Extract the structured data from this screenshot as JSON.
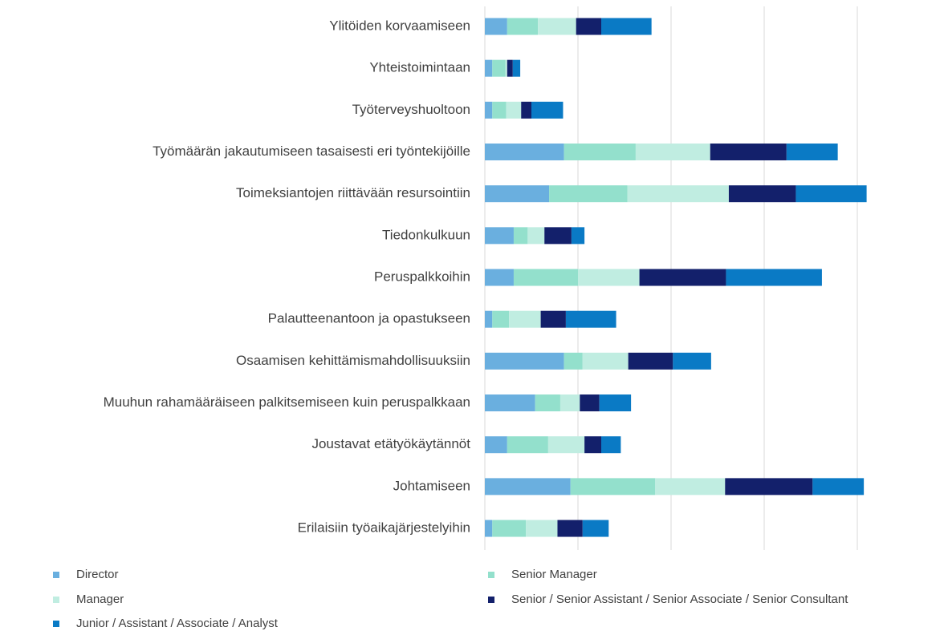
{
  "chart_data": {
    "type": "stacked-barh",
    "categories": [
      "Ylitöiden korvaamiseen",
      "Yhteistoimintaan",
      "Työterveyshuoltoon",
      "Työmäärän jakautumiseen tasaisesti eri työntekijöille",
      "Toimeksiantojen riittävään resursointiin",
      "Tiedonkulkuun",
      "Peruspalkkoihin",
      "Palautteenantoon ja opastukseen",
      "Osaamisen kehittämismahdollisuuksiin",
      "Muuhun rahamääräiseen palkitsemiseen kuin peruspalkkaan",
      "Joustavat etätyökäytännöt",
      "Johtamiseen",
      "Erilaisiin työaikajärjestelyihin"
    ],
    "series": [
      {
        "name": "Director",
        "color": "#6aafdf",
        "values": [
          2.4,
          0.8,
          0.8,
          8.5,
          6.9,
          3.1,
          3.1,
          0.8,
          8.5,
          5.4,
          2.4,
          9.2,
          0.8
        ]
      },
      {
        "name": "Senior Manager",
        "color": "#93e0cc",
        "values": [
          3.3,
          1.4,
          1.5,
          7.7,
          8.4,
          1.5,
          6.9,
          1.8,
          2.0,
          2.7,
          4.4,
          9.1,
          3.6
        ]
      },
      {
        "name": "Manager",
        "color": "#c0ede1",
        "values": [
          4.1,
          0.2,
          1.6,
          8.0,
          10.9,
          1.8,
          6.6,
          3.4,
          4.9,
          2.1,
          3.9,
          7.5,
          3.4
        ]
      },
      {
        "name": "Senior / Senior Assistant / Senior Associate / Senior Consultant",
        "color": "#13206b",
        "values": [
          2.7,
          0.6,
          1.1,
          8.2,
          7.2,
          2.9,
          9.3,
          2.7,
          4.8,
          2.1,
          1.8,
          9.4,
          2.7
        ]
      },
      {
        "name": "Junior / Assistant / Associate / Analyst",
        "color": "#0a7ac5",
        "values": [
          5.4,
          0.8,
          3.4,
          5.5,
          7.6,
          1.4,
          10.3,
          5.4,
          4.1,
          3.4,
          2.1,
          5.5,
          2.8
        ]
      }
    ],
    "xlim": [
      0,
      45
    ],
    "xticks": [
      0,
      10,
      20,
      30,
      40
    ],
    "grid": true,
    "legend": "bottom"
  }
}
